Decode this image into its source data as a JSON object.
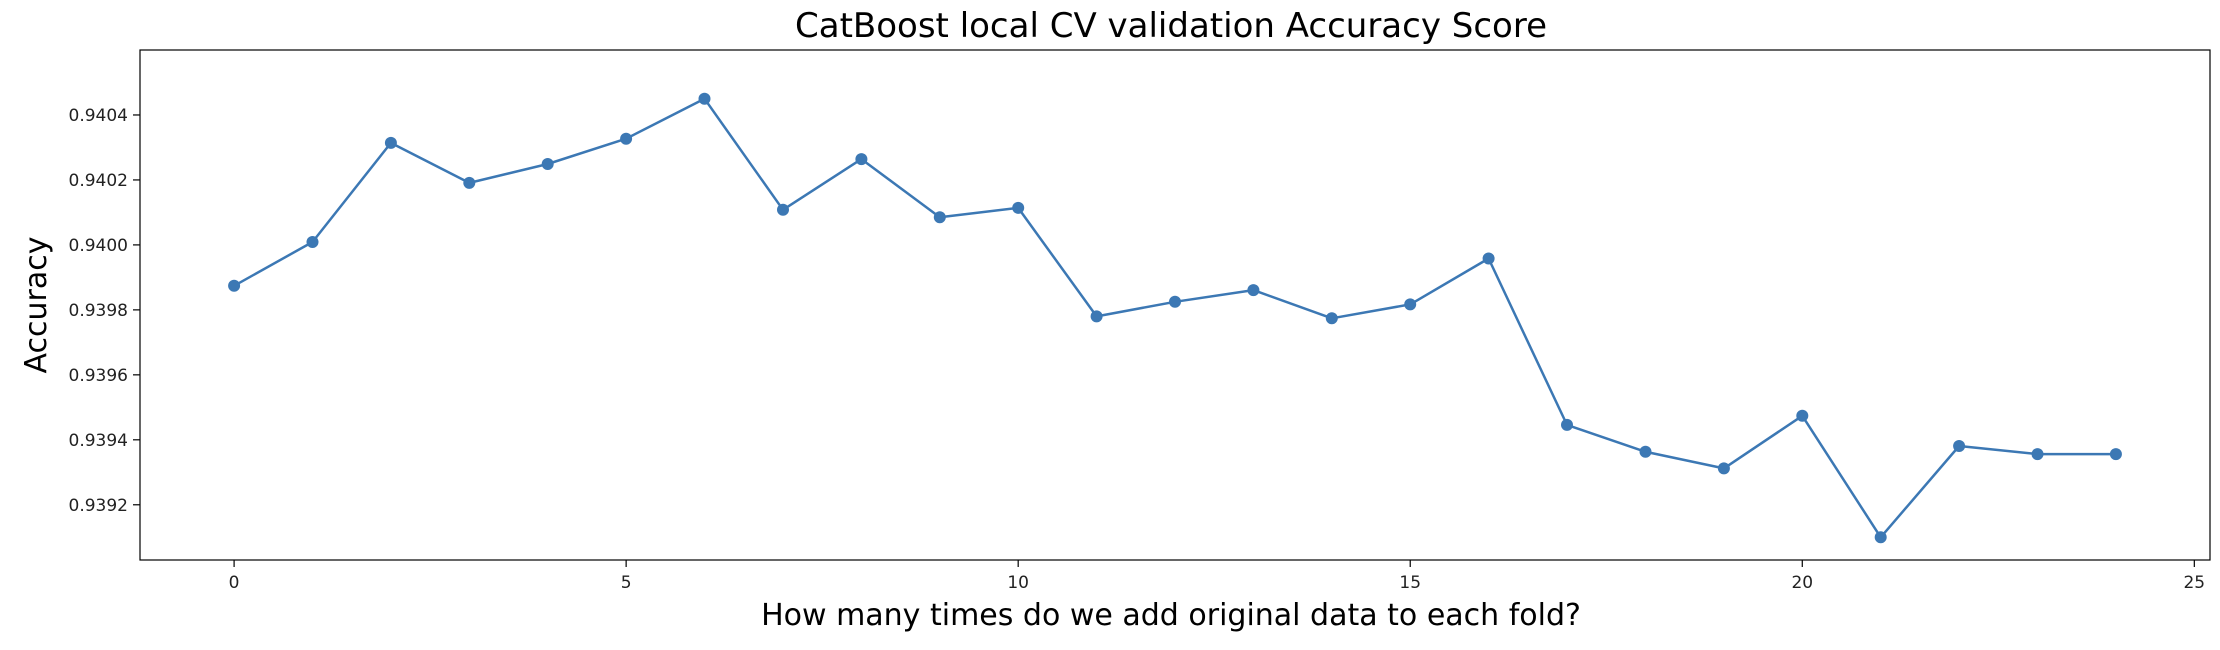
{
  "chart_data": {
    "type": "line",
    "title": "CatBoost local CV validation Accuracy Score",
    "xlabel": "How many times do we add original data to each fold?",
    "ylabel": "Accuracy",
    "x": [
      0,
      1,
      2,
      3,
      4,
      5,
      6,
      7,
      8,
      9,
      10,
      11,
      12,
      13,
      14,
      15,
      16,
      17,
      18,
      19,
      20,
      21,
      22,
      23,
      24
    ],
    "y": [
      0.939874,
      0.940009,
      0.940314,
      0.940191,
      0.940249,
      0.940327,
      0.94045,
      0.940108,
      0.940264,
      0.940085,
      0.940114,
      0.93978,
      0.939825,
      0.939861,
      0.939774,
      0.939817,
      0.939958,
      0.939446,
      0.939363,
      0.939312,
      0.939474,
      0.9391,
      0.939381,
      0.939356,
      0.939356
    ],
    "xlim": [
      -1.2,
      25.2
    ],
    "ylim": [
      0.93903,
      0.9406
    ],
    "xticks": [
      0,
      5,
      10,
      15,
      20,
      25
    ],
    "yticks": [
      0.9392,
      0.9394,
      0.9396,
      0.9398,
      0.94,
      0.9402,
      0.9404
    ],
    "ytick_labels": [
      "0.9392",
      "0.9394",
      "0.9396",
      "0.9398",
      "0.9400",
      "0.9402",
      "0.9404"
    ],
    "grid": false,
    "line_color": "#3c78b4",
    "marker": "circle"
  }
}
